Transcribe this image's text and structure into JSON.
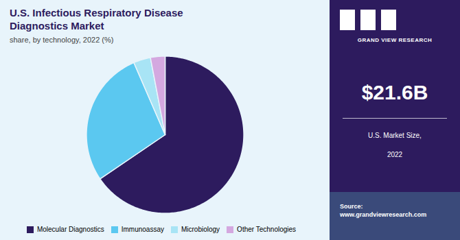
{
  "chart_data": {
    "type": "pie",
    "title": "U.S. Infectious Respiratory Disease Diagnostics Market",
    "subtitle": "share, by technology, 2022 (%)",
    "categories": [
      "Molecular Diagnostics",
      "Immunoassay",
      "Microbiology",
      "Other Technologies"
    ],
    "values": [
      65.5,
      28.0,
      3.5,
      3.0
    ],
    "colors": [
      "#2d1b5e",
      "#5bc8f0",
      "#a8e4f5",
      "#d4a8e0"
    ],
    "legend": "bottom",
    "annotations": [
      "GRAND VIEW RESEARCH",
      "$21.6B",
      "U.S. Market Size,",
      "2022",
      "Source:",
      "www.grandviewresearch.com"
    ]
  }
}
